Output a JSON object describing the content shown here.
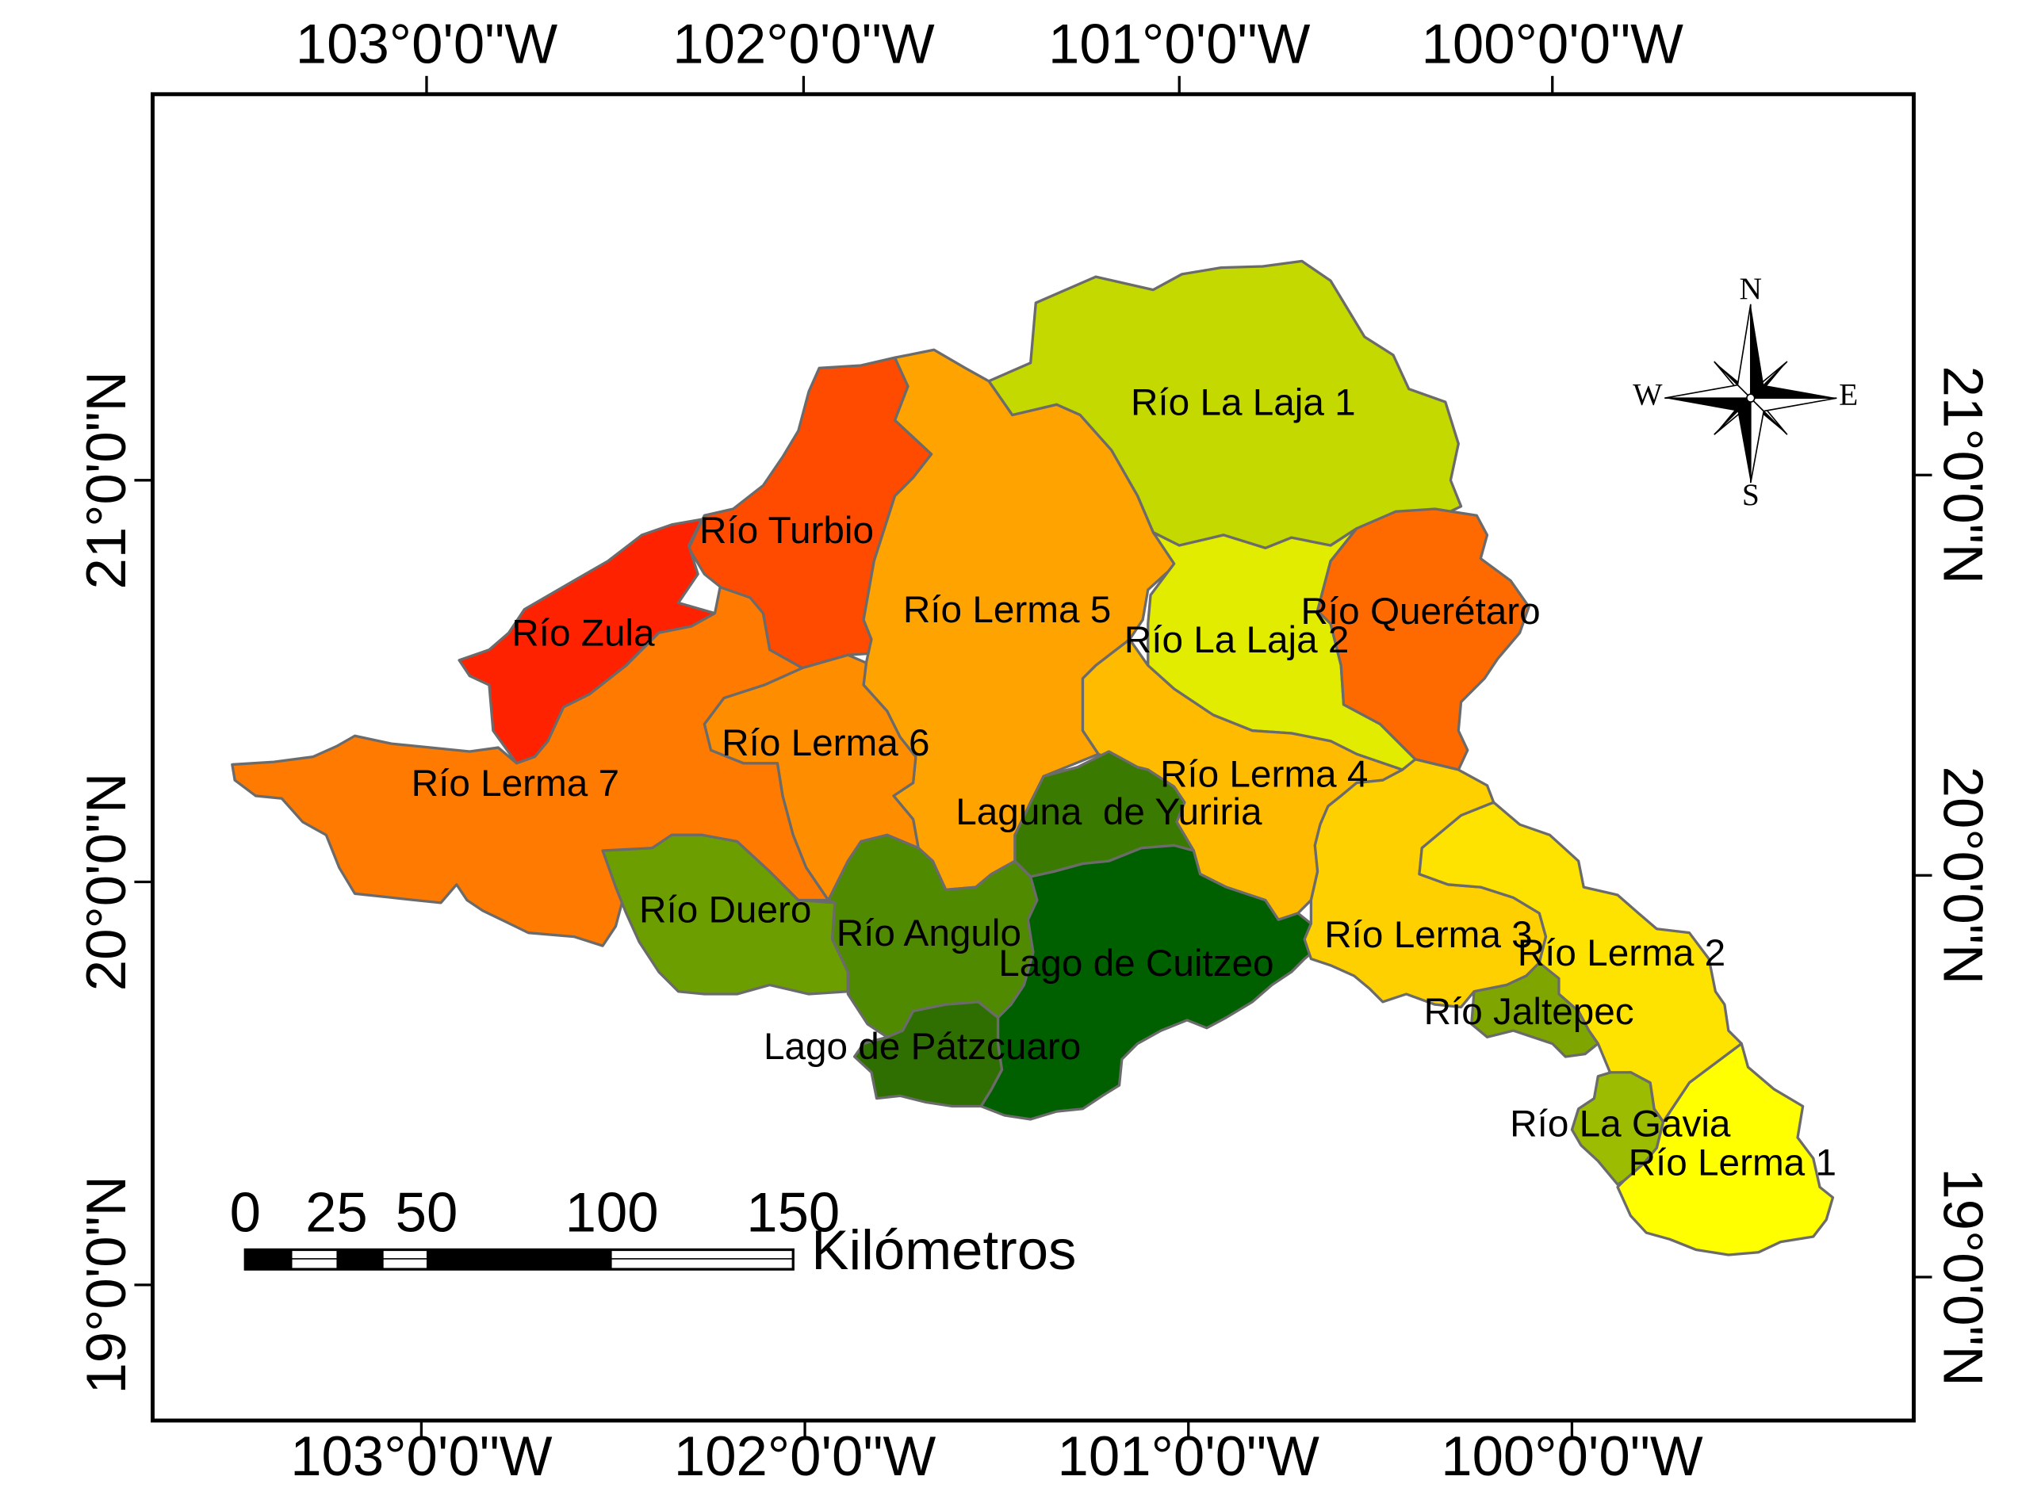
{
  "graticule": {
    "longitude_labels": [
      "103°0'0\"W",
      "102°0'0\"W",
      "101°0'0\"W",
      "100°0'0\"W"
    ],
    "latitude_labels": [
      "21°0'0\"N",
      "20°0'0\"N",
      "19°0'0\"N"
    ]
  },
  "regions": [
    {
      "name": "Río La Laja 1",
      "color": "#c3d900"
    },
    {
      "name": "Río Turbio",
      "color": "#ff4b00"
    },
    {
      "name": "Río Zula",
      "color": "#ff2200"
    },
    {
      "name": "Río Lerma 5",
      "color": "#ffa300"
    },
    {
      "name": "Río La Laja 2",
      "color": "#e1ec00"
    },
    {
      "name": "Río Querétaro",
      "color": "#ff6a00"
    },
    {
      "name": "Río Lerma 7",
      "color": "#ff7a00"
    },
    {
      "name": "Río Lerma 6",
      "color": "#ff8d00"
    },
    {
      "name": "Río Lerma 4",
      "color": "#ffbb00"
    },
    {
      "name": "Laguna  de Yuriria",
      "color": "#3b7a00"
    },
    {
      "name": "Río Duero",
      "color": "#6c9e00"
    },
    {
      "name": "Río Angulo",
      "color": "#4f8a00"
    },
    {
      "name": "Lago de Cuitzeo",
      "color": "#006000"
    },
    {
      "name": "Lago de Pátzcuaro",
      "color": "#2f6e00"
    },
    {
      "name": "Río Lerma 3",
      "color": "#ffd000"
    },
    {
      "name": "Río Lerma 2",
      "color": "#ffe300"
    },
    {
      "name": "Río Jaltepec",
      "color": "#7fa600"
    },
    {
      "name": "Río La Gavia",
      "color": "#9bbc00"
    },
    {
      "name": "Río Lerma 1",
      "color": "#ffff00"
    }
  ],
  "compass": {
    "n": "N",
    "s": "S",
    "e": "E",
    "w": "W"
  },
  "scale_bar": {
    "ticks": [
      "0",
      "25",
      "50",
      "100",
      "150"
    ],
    "unit": "Kilómetros"
  }
}
